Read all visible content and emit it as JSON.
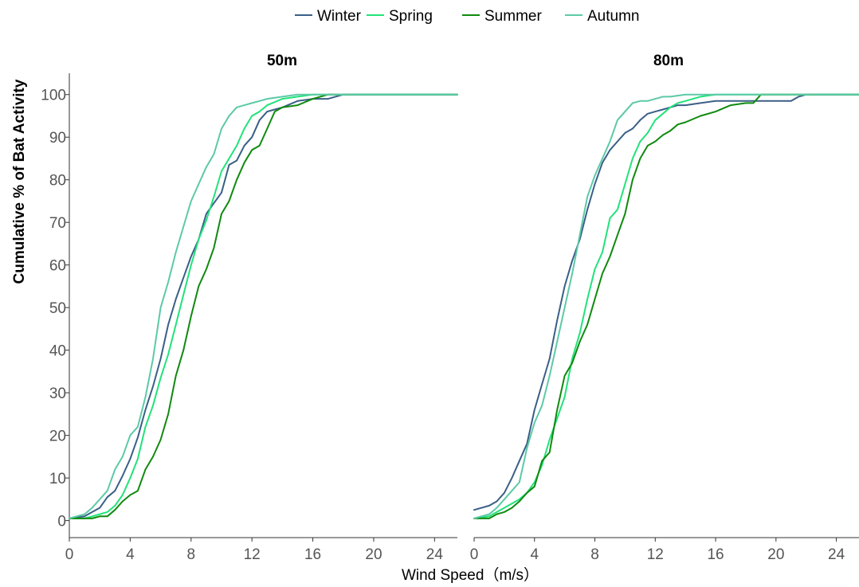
{
  "chart_data": {
    "type": "line",
    "ylabel": "Cumulative % of Bat Activity",
    "xlabel": "Wind Speed（m/s）",
    "xlim": [
      0,
      25.5
    ],
    "ylim": [
      -4,
      105
    ],
    "xticks": [
      0,
      4,
      8,
      12,
      16,
      20,
      24
    ],
    "yticks": [
      0,
      10,
      20,
      30,
      40,
      50,
      60,
      70,
      80,
      90,
      100
    ],
    "grid": false,
    "legend_position": "top",
    "legend": [
      {
        "name": "Winter",
        "color": "#3a5f86"
      },
      {
        "name": "Spring",
        "color": "#21e27a"
      },
      {
        "name": "Summer",
        "color": "#0f8a0f"
      },
      {
        "name": "Autumn",
        "color": "#5cc9a7"
      }
    ],
    "panels": [
      {
        "title": "50m",
        "series": [
          {
            "name": "Winter",
            "x": [
              0,
              1,
              1.5,
              2,
              2.5,
              3,
              3.5,
              4,
              4.5,
              5,
              5.5,
              6,
              6.5,
              7,
              7.5,
              8,
              8.5,
              9,
              9.5,
              10,
              10.5,
              11,
              11.5,
              12,
              12.5,
              13,
              14,
              15,
              16,
              17,
              18,
              25.5
            ],
            "y": [
              0.5,
              1,
              2,
              3,
              5.5,
              7,
              10.5,
              14.5,
              19.5,
              26,
              31.5,
              38,
              46,
              52,
              57,
              62,
              66,
              72,
              74.5,
              77,
              83.5,
              84.5,
              88,
              90,
              94,
              96,
              97,
              98.5,
              99,
              99,
              100,
              100
            ]
          },
          {
            "name": "Spring",
            "x": [
              0,
              1,
              1.5,
              2,
              2.5,
              3,
              3.5,
              4,
              4.5,
              5,
              5.5,
              6,
              6.5,
              7,
              7.5,
              8,
              8.5,
              9,
              9.5,
              10,
              10.5,
              11,
              11.5,
              12,
              12.5,
              13,
              14,
              15,
              16,
              17,
              25.5
            ],
            "y": [
              0.5,
              0.5,
              1,
              1.5,
              2,
              3.5,
              6,
              10,
              14.5,
              22,
              27,
              33.5,
              39,
              46,
              53,
              60,
              66,
              70.5,
              76,
              82,
              85,
              88,
              92,
              95,
              96,
              97.5,
              99,
              99.5,
              100,
              100,
              100
            ]
          },
          {
            "name": "Summer",
            "x": [
              0,
              1,
              1.5,
              2,
              2.5,
              3,
              3.5,
              4,
              4.5,
              5,
              5.5,
              6,
              6.5,
              7,
              7.5,
              8,
              8.5,
              9,
              9.5,
              10,
              10.5,
              11,
              11.5,
              12,
              12.5,
              13,
              13.5,
              14,
              15,
              16,
              17,
              25.5
            ],
            "y": [
              0.5,
              0.5,
              0.5,
              1,
              1,
              2.5,
              4.5,
              6,
              7,
              12,
              15,
              19,
              25,
              34,
              40,
              48,
              55,
              59,
              64,
              72,
              75,
              80,
              84,
              87,
              88,
              92,
              96,
              97,
              97.5,
              99,
              100,
              100
            ]
          },
          {
            "name": "Autumn",
            "x": [
              0,
              1,
              1.5,
              2,
              2.5,
              3,
              3.5,
              4,
              4.5,
              5,
              5.5,
              6,
              6.5,
              7,
              7.5,
              8,
              8.5,
              9,
              9.5,
              10,
              10.5,
              11,
              11.5,
              12,
              12.5,
              13,
              14,
              15,
              16,
              25.5
            ],
            "y": [
              0.5,
              1.5,
              3,
              5,
              7,
              12,
              15,
              20,
              22,
              29,
              38,
              50,
              56,
              63,
              69,
              75,
              79,
              83,
              86,
              92,
              95,
              97,
              97.5,
              98,
              98.5,
              99,
              99.5,
              100,
              100,
              100
            ]
          }
        ]
      },
      {
        "title": "80m",
        "series": [
          {
            "name": "Winter",
            "x": [
              0,
              1,
              1.5,
              2,
              2.5,
              3,
              3.5,
              4,
              4.5,
              5,
              5.5,
              6,
              6.5,
              7,
              7.5,
              8,
              8.5,
              9,
              9.5,
              10,
              10.5,
              11,
              11.5,
              12,
              12.5,
              13,
              13.5,
              14,
              15,
              16,
              17,
              18,
              19,
              20,
              21,
              21.5,
              22,
              25.5
            ],
            "y": [
              2.5,
              3.5,
              4.5,
              6.5,
              10,
              14,
              18,
              26,
              32,
              38,
              47,
              55,
              61,
              66,
              73,
              79,
              84,
              87,
              89,
              91,
              92,
              94,
              95.5,
              96,
              96.5,
              97,
              97.5,
              97.5,
              98,
              98.5,
              98.5,
              98.5,
              98.5,
              98.5,
              98.5,
              99.5,
              100,
              100
            ]
          },
          {
            "name": "Spring",
            "x": [
              0,
              1,
              1.5,
              2,
              2.5,
              3,
              3.5,
              4,
              4.5,
              5,
              5.5,
              6,
              6.5,
              7,
              7.5,
              8,
              8.5,
              9,
              9.5,
              10,
              10.5,
              11,
              11.5,
              12,
              12.5,
              13,
              13.5,
              14,
              15,
              16,
              25.5
            ],
            "y": [
              0.5,
              1,
              2,
              3,
              4,
              5,
              6.5,
              9,
              13,
              19,
              24,
              29,
              38,
              44,
              52,
              59,
              63,
              71,
              73,
              79,
              85,
              89,
              91,
              94,
              95.5,
              97,
              98,
              98.5,
              99.5,
              100,
              100
            ]
          },
          {
            "name": "Summer",
            "x": [
              0,
              1,
              1.5,
              2,
              2.5,
              3,
              3.5,
              4,
              4.5,
              5,
              5.5,
              6,
              6.5,
              7,
              7.5,
              8,
              8.5,
              9,
              9.5,
              10,
              10.5,
              11,
              11.5,
              12,
              12.5,
              13,
              13.5,
              14,
              15,
              16,
              17,
              18,
              18.5,
              19,
              25.5
            ],
            "y": [
              0.5,
              0.5,
              1.5,
              2,
              3,
              4.5,
              6.5,
              8,
              14,
              16,
              26,
              34,
              37,
              42,
              46,
              52,
              58,
              62,
              67,
              72,
              80,
              85,
              88,
              89,
              90.5,
              91.5,
              93,
              93.5,
              95,
              96,
              97.5,
              98,
              98,
              100,
              100
            ]
          },
          {
            "name": "Autumn",
            "x": [
              0,
              1,
              1.5,
              2,
              2.5,
              3,
              3.5,
              4,
              4.5,
              5,
              5.5,
              6,
              6.5,
              7,
              7.5,
              8,
              8.5,
              9,
              9.5,
              10,
              10.5,
              11,
              11.5,
              12,
              12.5,
              13,
              14,
              15,
              16,
              25.5
            ],
            "y": [
              0.5,
              1.5,
              3,
              5,
              7,
              9,
              17,
              23,
              27,
              34,
              42,
              50,
              58,
              67,
              76,
              81,
              85,
              89,
              94,
              96,
              98,
              98.5,
              98.5,
              99,
              99.5,
              99.5,
              100,
              100,
              100,
              100
            ]
          }
        ]
      }
    ]
  }
}
